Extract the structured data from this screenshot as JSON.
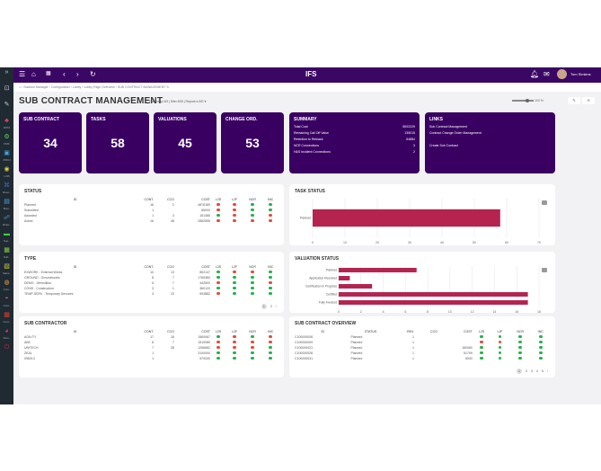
{
  "sidebar": {
    "items": [
      {
        "icon": "expand-icon",
        "label": ""
      },
      {
        "icon": "bookmark-icon",
        "label": ""
      },
      {
        "icon": "edit-icon",
        "label": ""
      },
      {
        "icon": "rpm-icon",
        "label": "RPM"
      },
      {
        "icon": "pmf-icon",
        "label": "PMF"
      },
      {
        "icon": "proj-icon",
        "label": "PROJ"
      },
      {
        "icon": "globe-icon",
        "label": "LOB"
      },
      {
        "icon": "hierarchy-icon",
        "label": "Reso.."
      },
      {
        "icon": "board-icon",
        "label": "Busi.."
      },
      {
        "icon": "people-icon",
        "label": "Refer.."
      },
      {
        "icon": "money-icon",
        "label": "Sup.."
      },
      {
        "icon": "doc-icon",
        "label": "Sub.."
      },
      {
        "icon": "chart-icon",
        "label": "Sales.."
      },
      {
        "icon": "cost-icon",
        "label": "Cust.."
      },
      {
        "icon": "pin-icon",
        "label": "Cust.."
      },
      {
        "icon": "contract-icon",
        "label": "Cont.."
      },
      {
        "icon": "person-icon",
        "label": "Pers.."
      },
      {
        "icon": "power-icon",
        "label": ""
      }
    ]
  },
  "topbar": {
    "logo": "IFS",
    "user": "Tom Simkins"
  },
  "breadcrumb": [
    "Solution Manager",
    "Configuration",
    "Lobby",
    "Lobby Page Overview",
    "SUB CONTRACT MANAGEMENT"
  ],
  "page": {
    "title": "SUB CONTRACT MANAGEMENT",
    "context": "Company=53 | Site=530 | Report=LIVE ▾",
    "zoom": "100 %"
  },
  "colors": {
    "brand": "#390062",
    "bar": "#b5234f",
    "green": "#22b14c",
    "red": "#e8473a"
  },
  "kpis": [
    {
      "label": "SUB CONTRACT",
      "value": "34"
    },
    {
      "label": "TASKS",
      "value": "58"
    },
    {
      "label": "VALUATIONS",
      "value": "45"
    },
    {
      "label": "CHANGE ORD.",
      "value": "53"
    }
  ],
  "summary": {
    "title": "SUMMARY",
    "rows": [
      {
        "k": "Total Cost",
        "v": "8002229"
      },
      {
        "k": "Remaining Call Off Value",
        "v": "135015"
      },
      {
        "k": "Retention to Release",
        "v": "64884"
      },
      {
        "k": "NCR Connections",
        "v": "3"
      },
      {
        "k": "H&S Incident Connections",
        "v": "2"
      }
    ]
  },
  "links": {
    "title": "LINKS",
    "items": [
      "Sub Contract Management",
      "Contract Change Order Management",
      "",
      "Create Sub Contract"
    ]
  },
  "status": {
    "title": "STATUS",
    "headers": [
      "ID",
      "CONT.",
      "CCO",
      "COST",
      "L2S",
      "L2F",
      "NCR",
      "INC"
    ],
    "rows": [
      [
        "Planned",
        "16",
        "2",
        "4878189",
        "r",
        "r",
        "g",
        "g"
      ],
      [
        "Submitted",
        "1",
        "",
        "85000",
        "r",
        "r",
        "g",
        "g"
      ],
      [
        "Awarded",
        "1",
        "3",
        "151385",
        "g",
        "r",
        "g",
        "r"
      ],
      [
        "Active",
        "16",
        "48",
        "2882555",
        "r",
        "r",
        "r",
        "r"
      ]
    ]
  },
  "type": {
    "title": "TYPE",
    "headers": [
      "ID",
      "CONT.",
      "CCO",
      "COST",
      "L2S",
      "L2F",
      "NCR",
      "INC"
    ],
    "rows": [
      [
        "EXWORK - External Works",
        "10",
        "13",
        "852147",
        "g",
        "r",
        "r",
        "g"
      ],
      [
        "GROUND - Groundworks",
        "8",
        "7",
        "1765380",
        "g",
        "g",
        "g",
        "g"
      ],
      [
        "DEMO - Demolition",
        "6",
        "7",
        "442800",
        "r",
        "g",
        "g",
        "r"
      ],
      [
        "CONS - Construction",
        "3",
        "1",
        "360120",
        "g",
        "g",
        "g",
        "g"
      ],
      [
        "TEMP-SERV - Temporary Services",
        "3",
        "23",
        "593882",
        "r",
        "g",
        "g",
        "g"
      ]
    ],
    "pages": [
      "1",
      "2",
      "›"
    ]
  },
  "subcontractor": {
    "title": "SUB CONTRACTOR",
    "headers": [
      "ID",
      "CONT.",
      "CCO",
      "COST",
      "L2S",
      "L2F",
      "NCR",
      "INC"
    ],
    "rows": [
      [
        "AGILITY",
        "17",
        "18",
        "1560067",
        "g",
        "r",
        "g",
        "r"
      ],
      [
        "ABC",
        "8",
        "7",
        "1510080",
        "r",
        "r",
        "r",
        "r"
      ],
      [
        "UNITECH",
        "7",
        "28",
        "1256682",
        "r",
        "r",
        "r",
        "g"
      ],
      [
        "ZEAL",
        "1",
        "",
        "3100000",
        "g",
        "g",
        "g",
        "g"
      ],
      [
        "095213",
        "1",
        "",
        "570000",
        "g",
        "g",
        "g",
        "g"
      ]
    ]
  },
  "overview": {
    "title": "SUB CONTRACT OVERVIEW",
    "headers": [
      "ID",
      "STATUS",
      "REV.",
      "CCO",
      "COST",
      "L2S",
      "L2F",
      "NCR",
      "INC"
    ],
    "rows": [
      [
        "C100000008",
        "Planned",
        "1",
        "",
        "",
        "g",
        "g",
        "g",
        "g"
      ],
      [
        "C100000009",
        "Planned",
        "1",
        "",
        "",
        "r",
        "r",
        "g",
        "g"
      ],
      [
        "C100000021",
        "Planned",
        "1",
        "",
        "180060",
        "g",
        "g",
        "g",
        "g"
      ],
      [
        "C100000028",
        "Planned",
        "1",
        "",
        "51799",
        "g",
        "g",
        "g",
        "g"
      ],
      [
        "C100000031",
        "Planned",
        "1",
        "",
        "5000",
        "g",
        "g",
        "g",
        "g"
      ]
    ],
    "pages": [
      "1",
      "2",
      "3",
      "4",
      "5",
      "›"
    ]
  },
  "chart_data": [
    {
      "type": "bar",
      "orientation": "horizontal",
      "title": "TASK STATUS",
      "categories": [
        "Planned"
      ],
      "values": [
        58
      ],
      "xlim": [
        0,
        70
      ],
      "xticks": [
        0,
        10,
        20,
        30,
        40,
        50,
        60,
        70
      ],
      "grid": true
    },
    {
      "type": "bar",
      "orientation": "horizontal",
      "title": "VALUATION STATUS",
      "categories": [
        "Planned",
        "Application Received",
        "Certification in Progress",
        "Certified",
        "Fully Invoiced"
      ],
      "values": [
        7,
        1,
        3,
        17,
        17
      ],
      "xlim": [
        0,
        18
      ],
      "xticks": [
        0,
        2,
        4,
        6,
        8,
        10,
        12,
        14,
        16,
        18
      ],
      "grid": true
    }
  ]
}
